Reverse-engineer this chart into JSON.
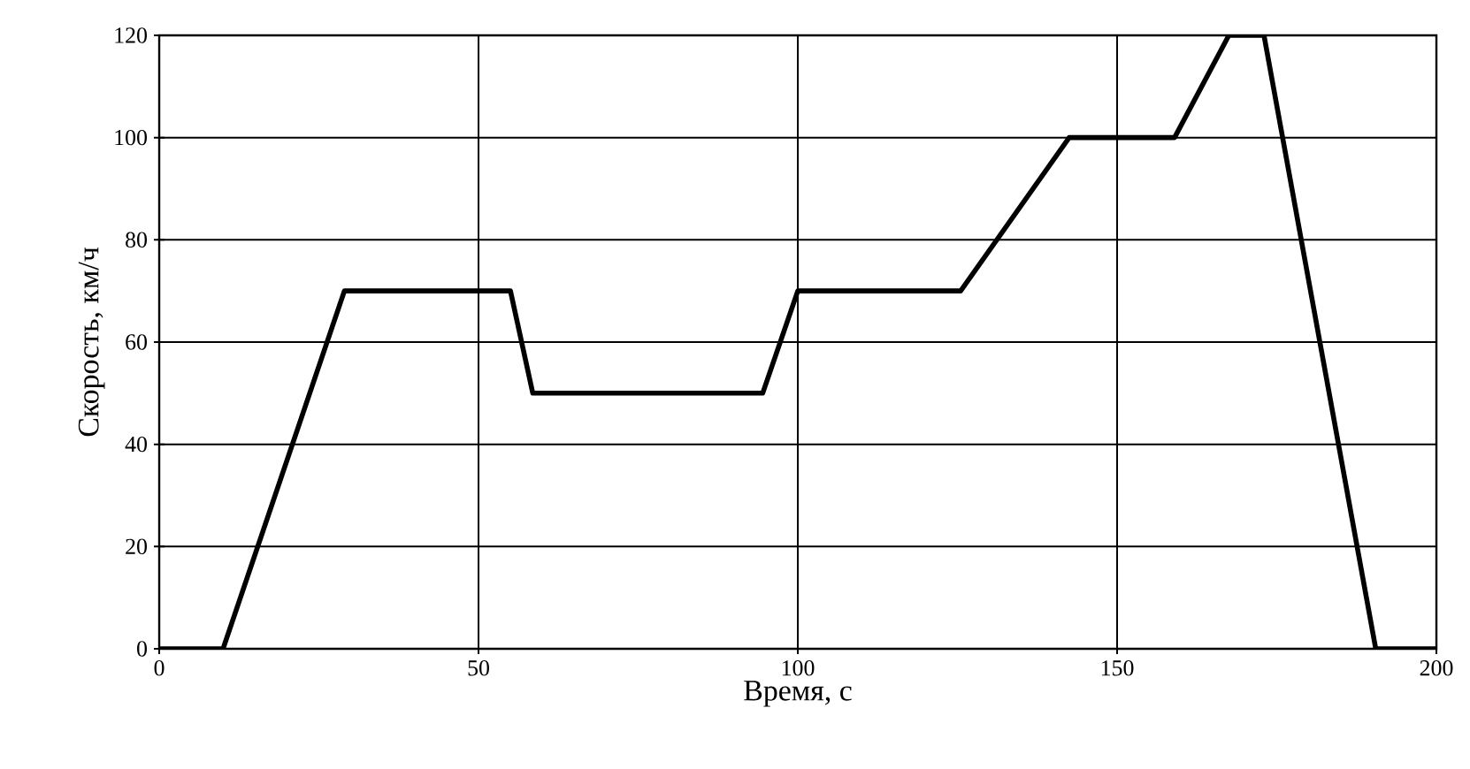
{
  "chart_data": {
    "type": "line",
    "xlabel": "Время, с",
    "ylabel": "Скорость, км/ч",
    "x": [
      0,
      10,
      29,
      55,
      58.5,
      94.5,
      100,
      125.5,
      142.5,
      159,
      167.5,
      173,
      190.5,
      200
    ],
    "series": [
      {
        "color": "#000000",
        "values": [
          0,
          0,
          70,
          70,
          50,
          50,
          70,
          70,
          100,
          100,
          120,
          120,
          0,
          0
        ]
      }
    ],
    "xlim": [
      0,
      200
    ],
    "ylim": [
      0,
      120
    ],
    "xticks": [
      0,
      50,
      100,
      150,
      200
    ],
    "yticks": [
      0,
      20,
      40,
      60,
      80,
      100,
      120
    ],
    "grid": true,
    "marker": "none",
    "line_style": "solid"
  }
}
